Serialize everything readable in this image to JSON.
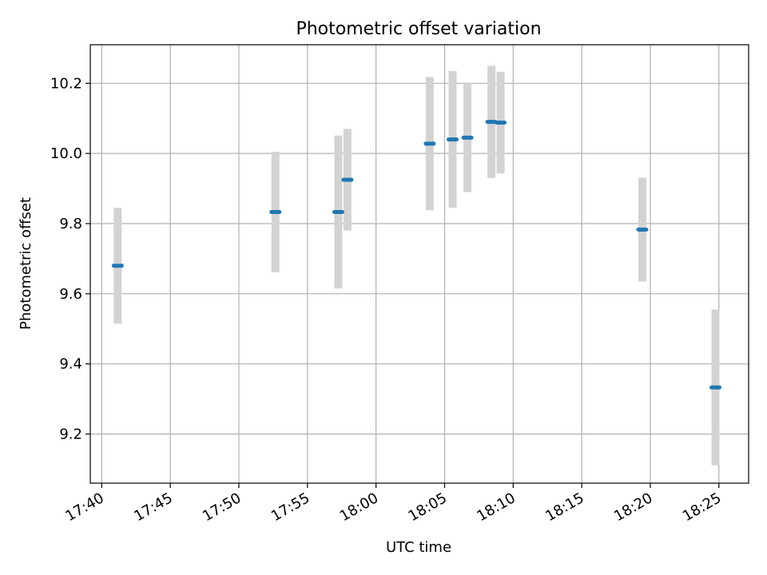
{
  "chart_data": {
    "type": "scatter",
    "title": "Photometric offset variation",
    "xlabel": "UTC time",
    "ylabel": "Photometric offset",
    "x_unit": "HH:MM (UTC)",
    "xlim": [
      "17:39:10",
      "18:27:10"
    ],
    "ylim": [
      9.06,
      10.31
    ],
    "x_ticks": [
      "17:40",
      "17:45",
      "17:50",
      "17:55",
      "18:00",
      "18:05",
      "18:10",
      "18:15",
      "18:20",
      "18:25"
    ],
    "y_ticks": [
      9.2,
      9.4,
      9.6,
      9.8,
      10.0,
      10.2
    ],
    "grid": true,
    "marker_color": "#1f77b4",
    "errorbar_color": "#d3d3d3",
    "points": [
      {
        "t": "17:41:10",
        "y": 9.68,
        "err": 0.165
      },
      {
        "t": "17:52:40",
        "y": 9.833,
        "err": 0.172
      },
      {
        "t": "17:57:15",
        "y": 9.833,
        "err": 0.218
      },
      {
        "t": "17:57:55",
        "y": 9.925,
        "err": 0.145
      },
      {
        "t": "18:03:55",
        "y": 10.028,
        "err": 0.19
      },
      {
        "t": "18:05:35",
        "y": 10.04,
        "err": 0.195
      },
      {
        "t": "18:06:40",
        "y": 10.045,
        "err": 0.155
      },
      {
        "t": "18:08:25",
        "y": 10.09,
        "err": 0.16
      },
      {
        "t": "18:09:05",
        "y": 10.088,
        "err": 0.145
      },
      {
        "t": "18:19:25",
        "y": 9.783,
        "err": 0.148
      },
      {
        "t": "18:24:45",
        "y": 9.333,
        "err": 0.222
      }
    ]
  }
}
